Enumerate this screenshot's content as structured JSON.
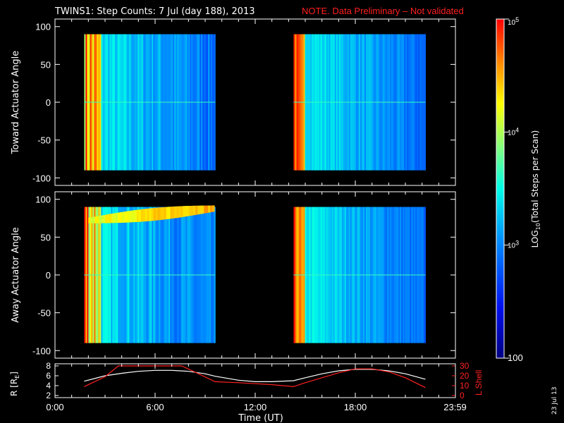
{
  "title": "TWINS1: Step Counts:  7 Jul (day 188), 2013",
  "note": "NOTE. Data Preliminary – Not validated",
  "side_stamp": "23 Jul 13",
  "colors": {
    "note": "#ff2020",
    "r_line": "#ffffff",
    "l_shell_line": "#ff2020",
    "background": "#000000"
  },
  "chart_data": [
    {
      "type": "heatmap",
      "ylabel": "Toward Actuator Angle",
      "ylim": [
        -110,
        110
      ],
      "y_ticks": [
        "100",
        "50",
        "0",
        "-50",
        "-100"
      ],
      "y_tick_values": [
        100,
        50,
        0,
        -50,
        -100
      ],
      "data_y_range": [
        -90,
        90
      ],
      "data_time_blocks_hours": [
        [
          1.75,
          9.6
        ],
        [
          14.3,
          22.2
        ]
      ]
    },
    {
      "type": "heatmap",
      "ylabel": "Away Actuator Angle",
      "ylim": [
        -110,
        110
      ],
      "y_ticks": [
        "100",
        "50",
        "0",
        "-50",
        "-100"
      ],
      "y_tick_values": [
        100,
        50,
        0,
        -50,
        -100
      ],
      "data_y_range": [
        -90,
        90
      ],
      "data_time_blocks_hours": [
        [
          1.75,
          9.6
        ],
        [
          14.3,
          22.2
        ]
      ]
    },
    {
      "type": "line",
      "ylabel": "R [R",
      "ylabel_sub": "E",
      "ylabel_close": "]",
      "y2label": "L Shell",
      "ylim": [
        2,
        8
      ],
      "y2lim": [
        0,
        30
      ],
      "y_ticks": [
        "8",
        "6",
        "4",
        "2"
      ],
      "y_tick_values": [
        8,
        6,
        4,
        2
      ],
      "y2_ticks": [
        "30",
        "20",
        "10",
        "0"
      ],
      "y2_tick_values": [
        30,
        20,
        10,
        0
      ],
      "series": [
        {
          "axis": "left",
          "x": [
            1.75,
            3,
            4,
            5,
            6,
            7,
            8,
            9,
            9.6,
            11,
            12,
            13,
            14.3,
            15,
            16,
            17,
            18,
            19,
            20,
            21,
            22.2
          ],
          "y": [
            4.9,
            6.0,
            6.5,
            6.9,
            7.1,
            7.1,
            6.9,
            6.4,
            5.9,
            5.1,
            4.8,
            4.8,
            5.0,
            5.6,
            6.4,
            7.0,
            7.3,
            7.3,
            7.0,
            6.4,
            5.3
          ]
        },
        {
          "axis": "right",
          "x": [
            1.75,
            3,
            3.8,
            7.6,
            9.6,
            11,
            12,
            13,
            14.3,
            15,
            16,
            17,
            18,
            19,
            20,
            21,
            22.2
          ],
          "y": [
            9,
            19,
            30,
            30,
            14,
            13,
            12,
            11,
            9,
            13,
            18,
            23,
            27,
            27,
            24,
            18,
            8
          ]
        }
      ]
    }
  ],
  "time_axis": {
    "label": "Time (UT)",
    "range_hours": [
      0,
      24
    ],
    "tick_labels": [
      "0:00",
      "6:00",
      "12:00",
      "18:00",
      "23:59"
    ],
    "tick_hours": [
      0,
      6,
      12,
      18,
      23.98
    ]
  },
  "colorbar": {
    "label": "LOG",
    "label_sub": "10",
    "label_rest": "(Total Steps per Scan)",
    "scale": "log",
    "range": [
      100,
      100000
    ],
    "tick_labels": [
      {
        "base": "10",
        "exp": "5"
      },
      {
        "base": "10",
        "exp": "4"
      },
      {
        "base": "10",
        "exp": "3"
      },
      {
        "base": "100",
        "exp": ""
      }
    ],
    "tick_values": [
      100000,
      10000,
      1000,
      100
    ]
  }
}
